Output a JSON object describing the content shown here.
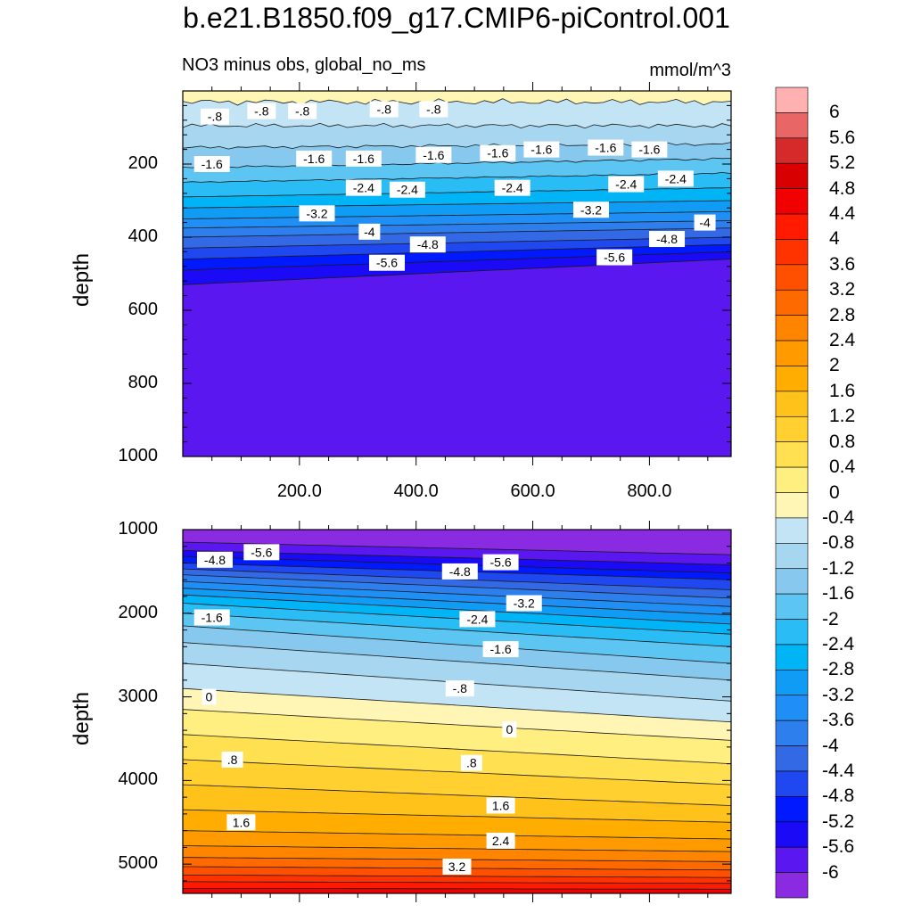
{
  "title": "b.e21.B1850.f09_g17.CMIP6-piControl.001",
  "subtitle_left": "NO3 minus obs, global_no_ms",
  "units": "mmol/m^3",
  "colors": {
    "levels": [
      -6.4,
      -6,
      -5.6,
      -5.2,
      -4.8,
      -4.4,
      -4,
      -3.6,
      -3.2,
      -2.8,
      -2.4,
      -2,
      -1.6,
      -1.2,
      -0.8,
      -0.4,
      0,
      0.4,
      0.8,
      1.2,
      1.6,
      2,
      2.4,
      2.8,
      3.2,
      3.6,
      4,
      4.4,
      4.8,
      5.2,
      5.6,
      6,
      6.4
    ],
    "fills": [
      "#8a2be2",
      "#5a17f0",
      "#1a0af5",
      "#0019ff",
      "#2048f0",
      "#3469e6",
      "#2e7fee",
      "#1f8ff5",
      "#109cf5",
      "#00b4f5",
      "#2abcf5",
      "#5cc5f2",
      "#86c8ee",
      "#a6d6f0",
      "#c2e4f5",
      "#fff5b4",
      "#ffee80",
      "#ffe050",
      "#ffd030",
      "#ffc21a",
      "#ffad00",
      "#ff9a00",
      "#ff8400",
      "#ff6a00",
      "#ff5000",
      "#ff3300",
      "#ff1a00",
      "#f00000",
      "#d80000",
      "#d42a2a",
      "#e86666",
      "#ffb0b0"
    ]
  },
  "chart_data": [
    {
      "type": "heatmap",
      "panel": "upper",
      "title": "NO3 minus obs, global_no_ms",
      "ylabel": "depth",
      "xlabel": "",
      "xlim": [
        0,
        940
      ],
      "ylim": [
        1000,
        0
      ],
      "xticks": [
        "200.0",
        "400.0",
        "600.0",
        "800.0"
      ],
      "xtick_values": [
        200,
        400,
        600,
        800
      ],
      "yticks": [
        "200",
        "400",
        "600",
        "800",
        "1000"
      ],
      "ytick_values": [
        200,
        400,
        600,
        800,
        1000
      ],
      "contour_levels_depth": [
        {
          "level": -0.4,
          "depth_left": 30,
          "depth_right": 30
        },
        {
          "level": -0.8,
          "depth_left": 95,
          "depth_right": 95
        },
        {
          "level": -1.2,
          "depth_left": 155,
          "depth_right": 145
        },
        {
          "level": -1.6,
          "depth_left": 210,
          "depth_right": 185
        },
        {
          "level": -2.0,
          "depth_left": 250,
          "depth_right": 225
        },
        {
          "level": -2.4,
          "depth_left": 290,
          "depth_right": 265
        },
        {
          "level": -2.8,
          "depth_left": 320,
          "depth_right": 300
        },
        {
          "level": -3.2,
          "depth_left": 350,
          "depth_right": 330
        },
        {
          "level": -3.6,
          "depth_left": 375,
          "depth_right": 355
        },
        {
          "level": -4.0,
          "depth_left": 400,
          "depth_right": 375
        },
        {
          "level": -4.4,
          "depth_left": 430,
          "depth_right": 400
        },
        {
          "level": -4.8,
          "depth_left": 460,
          "depth_right": 420
        },
        {
          "level": -5.2,
          "depth_left": 490,
          "depth_right": 440
        },
        {
          "level": -5.6,
          "depth_left": 530,
          "depth_right": 460
        }
      ],
      "contour_labels": [
        {
          "text": "-.8",
          "x": 55,
          "depth": 70
        },
        {
          "text": "-.8",
          "x": 135,
          "depth": 55
        },
        {
          "text": "-.8",
          "x": 205,
          "depth": 55
        },
        {
          "text": "-.8",
          "x": 345,
          "depth": 50
        },
        {
          "text": "-.8",
          "x": 430,
          "depth": 50
        },
        {
          "text": "-1.6",
          "x": 50,
          "depth": 200
        },
        {
          "text": "-1.6",
          "x": 225,
          "depth": 185
        },
        {
          "text": "-1.6",
          "x": 310,
          "depth": 185
        },
        {
          "text": "-1.6",
          "x": 430,
          "depth": 175
        },
        {
          "text": "-1.6",
          "x": 540,
          "depth": 170
        },
        {
          "text": "-1.6",
          "x": 615,
          "depth": 160
        },
        {
          "text": "-1.6",
          "x": 725,
          "depth": 155
        },
        {
          "text": "-1.6",
          "x": 800,
          "depth": 160
        },
        {
          "text": "-2.4",
          "x": 310,
          "depth": 265
        },
        {
          "text": "-2.4",
          "x": 385,
          "depth": 270
        },
        {
          "text": "-2.4",
          "x": 565,
          "depth": 265
        },
        {
          "text": "-2.4",
          "x": 760,
          "depth": 255
        },
        {
          "text": "-2.4",
          "x": 845,
          "depth": 240
        },
        {
          "text": "-3.2",
          "x": 230,
          "depth": 335
        },
        {
          "text": "-3.2",
          "x": 700,
          "depth": 325
        },
        {
          "text": "-4",
          "x": 320,
          "depth": 385
        },
        {
          "text": "-4",
          "x": 895,
          "depth": 360
        },
        {
          "text": "-4.8",
          "x": 420,
          "depth": 420
        },
        {
          "text": "-4.8",
          "x": 830,
          "depth": 405
        },
        {
          "text": "-5.6",
          "x": 350,
          "depth": 470
        },
        {
          "text": "-5.6",
          "x": 740,
          "depth": 455
        }
      ]
    },
    {
      "type": "heatmap",
      "panel": "lower",
      "ylabel": "depth",
      "xlabel": "",
      "xlim": [
        0,
        940
      ],
      "ylim": [
        5350,
        1000
      ],
      "yticks": [
        "1000",
        "2000",
        "3000",
        "4000",
        "5000"
      ],
      "ytick_values": [
        1000,
        2000,
        3000,
        4000,
        5000
      ],
      "contour_levels_depth": [
        {
          "level": -6.0,
          "depth_left": 1150,
          "depth_right": 1300
        },
        {
          "level": -5.6,
          "depth_left": 1250,
          "depth_right": 1420
        },
        {
          "level": -5.2,
          "depth_left": 1320,
          "depth_right": 1520
        },
        {
          "level": -4.8,
          "depth_left": 1400,
          "depth_right": 1600
        },
        {
          "level": -4.4,
          "depth_left": 1470,
          "depth_right": 1720
        },
        {
          "level": -4.0,
          "depth_left": 1540,
          "depth_right": 1820
        },
        {
          "level": -3.6,
          "depth_left": 1620,
          "depth_right": 1920
        },
        {
          "level": -3.2,
          "depth_left": 1700,
          "depth_right": 2020
        },
        {
          "level": -2.8,
          "depth_left": 1780,
          "depth_right": 2130
        },
        {
          "level": -2.4,
          "depth_left": 1880,
          "depth_right": 2250
        },
        {
          "level": -2.0,
          "depth_left": 2000,
          "depth_right": 2400
        },
        {
          "level": -1.6,
          "depth_left": 2150,
          "depth_right": 2600
        },
        {
          "level": -1.2,
          "depth_left": 2350,
          "depth_right": 2800
        },
        {
          "level": -0.8,
          "depth_left": 2600,
          "depth_right": 3050
        },
        {
          "level": -0.4,
          "depth_left": 2900,
          "depth_right": 3300
        },
        {
          "level": 0.0,
          "depth_left": 3150,
          "depth_right": 3520
        },
        {
          "level": 0.4,
          "depth_left": 3450,
          "depth_right": 3800
        },
        {
          "level": 0.8,
          "depth_left": 3750,
          "depth_right": 4050
        },
        {
          "level": 1.2,
          "depth_left": 4050,
          "depth_right": 4300
        },
        {
          "level": 1.6,
          "depth_left": 4350,
          "depth_right": 4500
        },
        {
          "level": 2.0,
          "depth_left": 4600,
          "depth_right": 4700
        },
        {
          "level": 2.4,
          "depth_left": 4780,
          "depth_right": 4850
        },
        {
          "level": 2.8,
          "depth_left": 4920,
          "depth_right": 4970
        },
        {
          "level": 3.2,
          "depth_left": 5030,
          "depth_right": 5070
        },
        {
          "level": 3.6,
          "depth_left": 5130,
          "depth_right": 5160
        },
        {
          "level": 4.0,
          "depth_left": 5210,
          "depth_right": 5230
        },
        {
          "level": 4.4,
          "depth_left": 5290,
          "depth_right": 5300
        }
      ],
      "contour_labels": [
        {
          "text": "-5.6",
          "x": 135,
          "depth": 1270
        },
        {
          "text": "-4.8",
          "x": 55,
          "depth": 1360
        },
        {
          "text": "-4.8",
          "x": 475,
          "depth": 1500
        },
        {
          "text": "-5.6",
          "x": 545,
          "depth": 1390
        },
        {
          "text": "-3.2",
          "x": 585,
          "depth": 1880
        },
        {
          "text": "-1.6",
          "x": 50,
          "depth": 2050
        },
        {
          "text": "-2.4",
          "x": 505,
          "depth": 2070
        },
        {
          "text": "-1.6",
          "x": 545,
          "depth": 2430
        },
        {
          "text": "-.8",
          "x": 475,
          "depth": 2900
        },
        {
          "text": "0",
          "x": 45,
          "depth": 3000
        },
        {
          "text": "0",
          "x": 560,
          "depth": 3390
        },
        {
          "text": ".8",
          "x": 85,
          "depth": 3750
        },
        {
          "text": ".8",
          "x": 495,
          "depth": 3790
        },
        {
          "text": "1.6",
          "x": 100,
          "depth": 4500
        },
        {
          "text": "1.6",
          "x": 545,
          "depth": 4300
        },
        {
          "text": "2.4",
          "x": 545,
          "depth": 4720
        },
        {
          "text": "3.2",
          "x": 470,
          "depth": 5030
        }
      ]
    }
  ],
  "colorbar": {
    "labels": [
      "6",
      "5.6",
      "5.2",
      "4.8",
      "4.4",
      "4",
      "3.6",
      "3.2",
      "2.8",
      "2.4",
      "2",
      "1.6",
      "1.2",
      "0.8",
      "0.4",
      "0",
      "-0.4",
      "-0.8",
      "-1.2",
      "-1.6",
      "-2",
      "-2.4",
      "-2.8",
      "-3.2",
      "-3.6",
      "-4",
      "-4.4",
      "-4.8",
      "-5.2",
      "-5.6",
      "-6"
    ]
  }
}
